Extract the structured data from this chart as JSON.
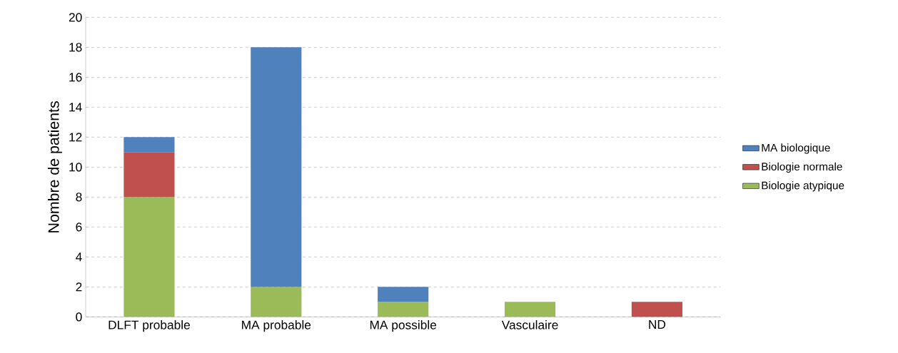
{
  "chart_data": {
    "type": "bar",
    "stacked": true,
    "ylabel": "Nombre de patients",
    "categories": [
      "DLFT probable",
      "MA probable",
      "MA possible",
      "Vasculaire",
      "ND"
    ],
    "series": [
      {
        "name": "Biologie atypique",
        "color": "#9bbb59",
        "values": [
          8,
          2,
          1,
          1,
          0
        ]
      },
      {
        "name": "Biologie normale",
        "color": "#c0504d",
        "values": [
          3,
          0,
          0,
          0,
          1
        ]
      },
      {
        "name": "MA biologique",
        "color": "#4f81bd",
        "values": [
          1,
          16,
          1,
          0,
          0
        ]
      }
    ],
    "ylim": [
      0,
      20
    ],
    "yticks": [
      0,
      2,
      4,
      6,
      8,
      10,
      12,
      14,
      16,
      18,
      20
    ],
    "grid": "y",
    "legend": "right"
  }
}
